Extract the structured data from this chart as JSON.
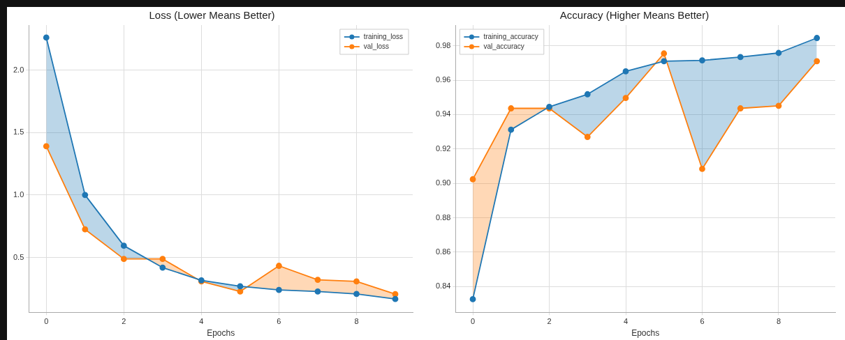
{
  "chart_data": [
    {
      "type": "line",
      "title": "Loss (Lower Means Better)",
      "xlabel": "Epochs",
      "x": [
        0,
        1,
        2,
        3,
        4,
        5,
        6,
        7,
        8,
        9
      ],
      "series": [
        {
          "name": "training_loss",
          "color": "#1f77b4",
          "values": [
            2.26,
            1.0,
            0.594,
            0.419,
            0.317,
            0.269,
            0.24,
            0.227,
            0.208,
            0.167
          ],
          "lower": [
            1.39,
            0.725,
            0.488,
            0.488,
            0.308,
            0.227,
            0.433,
            null,
            null,
            null
          ],
          "upper": [
            2.26,
            1.0,
            0.594,
            0.419,
            0.317,
            0.269,
            0.24,
            null,
            null,
            null
          ]
        },
        {
          "name": "val_loss",
          "color": "#ff7f0e",
          "values": [
            1.39,
            0.725,
            0.488,
            0.488,
            0.308,
            0.227,
            0.433,
            0.321,
            0.308,
            0.206
          ],
          "lower": [
            null,
            null,
            0.594,
            0.419,
            0.317,
            0.269,
            0.24,
            0.227,
            0.208,
            0.167
          ],
          "upper": [
            null,
            null,
            0.488,
            0.488,
            0.308,
            0.227,
            0.433,
            0.321,
            0.308,
            0.206
          ]
        }
      ],
      "xlim": [
        -0.45,
        9.45
      ],
      "xticks": [
        0,
        2,
        4,
        6,
        8
      ],
      "ylim": [
        0.06,
        2.36
      ],
      "yticks": [
        {
          "value": 0.5,
          "label": "0.5"
        },
        {
          "value": 1,
          "label": "1.0"
        },
        {
          "value": 1.5,
          "label": "1.5"
        },
        {
          "value": 2,
          "label": "2.0"
        }
      ],
      "grid": true,
      "legend": "top right",
      "marker": "circle",
      "line_style": "solid"
    },
    {
      "type": "line",
      "title": "Accuracy (Higher Means Better)",
      "xlabel": "Epochs",
      "x": [
        0,
        1,
        2,
        3,
        4,
        5,
        6,
        7,
        8,
        9
      ],
      "series": [
        {
          "name": "training_accuracy",
          "color": "#1f77b4",
          "values": [
            0.8327,
            0.9312,
            0.9445,
            0.9518,
            0.9651,
            0.971,
            0.9715,
            0.9734,
            0.9758,
            0.9845
          ],
          "lower": [
            null,
            0.9436,
            0.9436,
            0.927,
            0.9496,
            0.9755,
            0.9084,
            0.9436,
            0.9451,
            0.971
          ],
          "upper": [
            null,
            0.9312,
            0.9445,
            0.9518,
            0.9651,
            0.971,
            0.9715,
            0.9734,
            0.9758,
            0.9845
          ]
        },
        {
          "name": "val_accuracy",
          "color": "#ff7f0e",
          "values": [
            0.9024,
            0.9436,
            0.9436,
            0.927,
            0.9496,
            0.9755,
            0.9084,
            0.9436,
            0.9451,
            0.971
          ],
          "lower": [
            0.8327,
            0.9312,
            0.9445,
            null,
            0.9651,
            0.971,
            0.9715,
            null,
            null,
            null
          ],
          "upper": [
            0.9024,
            0.9436,
            0.9436,
            null,
            0.9496,
            0.9755,
            0.9084,
            null,
            null,
            null
          ]
        }
      ],
      "xlim": [
        -0.45,
        9.48
      ],
      "xticks": [
        0,
        2,
        4,
        6,
        8
      ],
      "ylim": [
        0.825,
        0.992
      ],
      "yticks": [
        0.84,
        0.86,
        0.88,
        {
          "value": 0.9,
          "label": "0.90"
        },
        0.92,
        0.94,
        0.96,
        0.98
      ],
      "grid": true,
      "legend": "top left",
      "marker": "circle",
      "line_style": "solid"
    }
  ]
}
